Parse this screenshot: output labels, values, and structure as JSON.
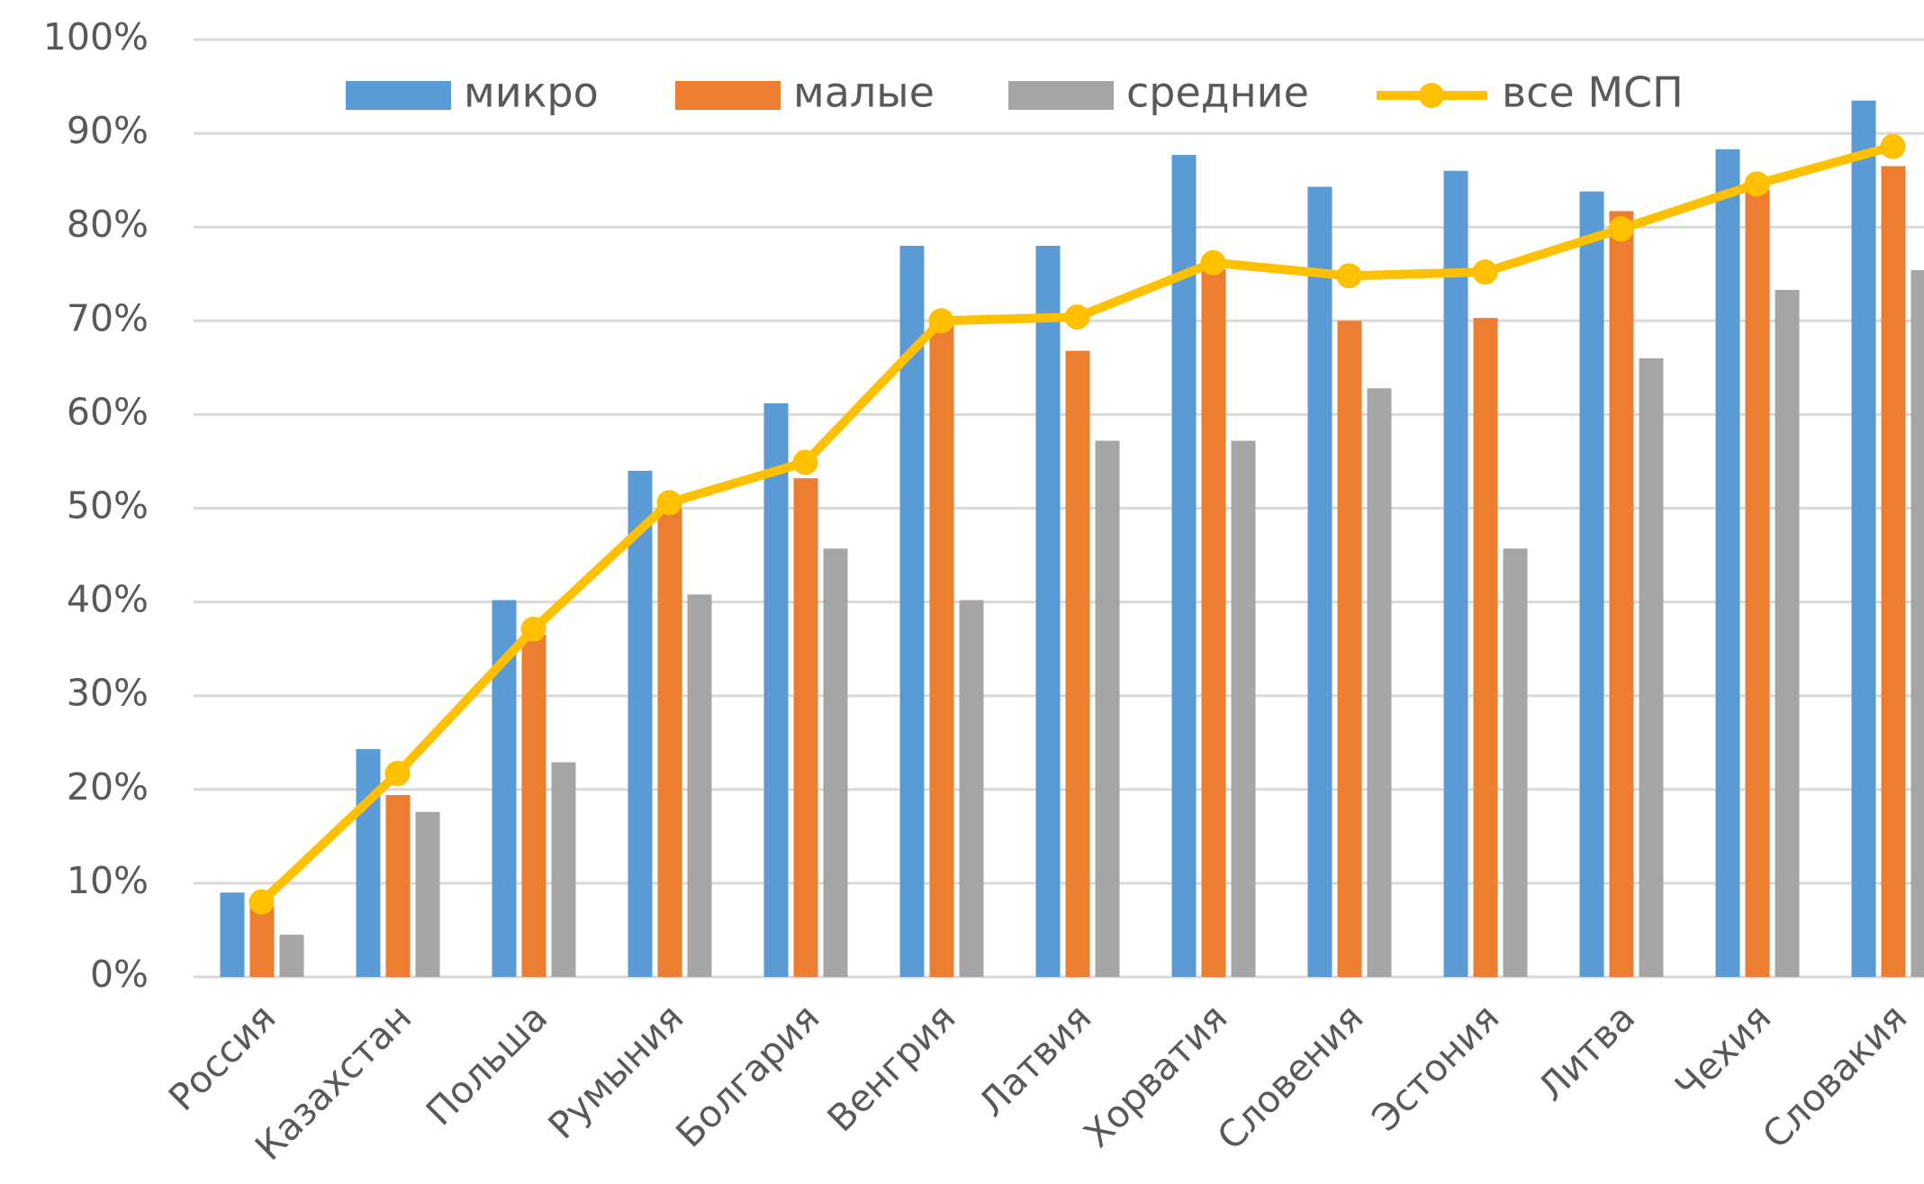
{
  "chart_data": {
    "type": "bar+line",
    "categories": [
      "Россия",
      "Казахстан",
      "Польша",
      "Румыния",
      "Болгария",
      "Венгрия",
      "Латвия",
      "Хорватия",
      "Словения",
      "Эстония",
      "Литва",
      "Чехия",
      "Словакия"
    ],
    "series": [
      {
        "name": "микро",
        "type": "bar",
        "color": "#5b9bd5",
        "values": [
          9,
          24.3,
          40.2,
          54,
          61.2,
          78,
          78,
          87.7,
          84.3,
          86,
          83.8,
          88.3,
          93.5
        ]
      },
      {
        "name": "малые",
        "type": "bar",
        "color": "#ed7d31",
        "values": [
          7.5,
          19.4,
          36.5,
          50,
          53.2,
          69.5,
          66.8,
          75.5,
          70,
          70.3,
          81.7,
          84,
          86.5
        ]
      },
      {
        "name": "средние",
        "type": "bar",
        "color": "#a5a5a5",
        "values": [
          4.5,
          17.6,
          22.9,
          40.8,
          45.7,
          40.2,
          57.2,
          57.2,
          62.8,
          45.7,
          66,
          73.3,
          75.4
        ]
      },
      {
        "name": "все МСП",
        "type": "line",
        "color": "#ffc000",
        "values": [
          8,
          21.7,
          37.1,
          50.6,
          54.9,
          70,
          70.4,
          76.2,
          74.8,
          75.2,
          79.8,
          84.6,
          88.6
        ]
      }
    ],
    "ylim": [
      0,
      100
    ],
    "yticks": [
      {
        "value": 0,
        "label": "0%"
      },
      {
        "value": 10,
        "label": "10%"
      },
      {
        "value": 20,
        "label": "20%"
      },
      {
        "value": 30,
        "label": "30%"
      },
      {
        "value": 40,
        "label": "40%"
      },
      {
        "value": 50,
        "label": "50%"
      },
      {
        "value": 60,
        "label": "60%"
      },
      {
        "value": 70,
        "label": "70%"
      },
      {
        "value": 80,
        "label": "80%"
      },
      {
        "value": 90,
        "label": "90%"
      },
      {
        "value": 100,
        "label": "100%"
      }
    ],
    "grid": true,
    "legend": "top"
  }
}
